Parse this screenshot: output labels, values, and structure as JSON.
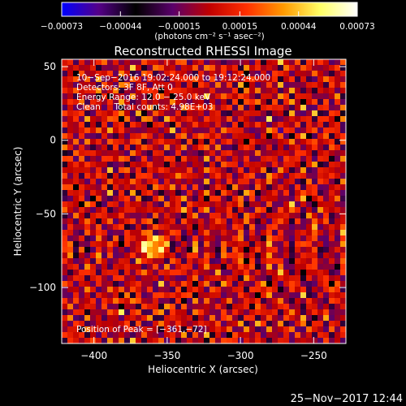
{
  "chart_data": {
    "type": "heatmap",
    "title": "Reconstructed RHESSI Image",
    "xlabel": "Heliocentric X (arcsec)",
    "ylabel": "Heliocentric Y (arcsec)",
    "xlim": [
      -422,
      -228
    ],
    "ylim": [
      -138,
      55
    ],
    "x_ticks": [
      -400,
      -350,
      -300,
      -250
    ],
    "x_tick_labels": [
      "−400",
      "−350",
      "−300",
      "−250"
    ],
    "y_ticks": [
      50,
      0,
      -50,
      -100
    ],
    "y_tick_labels": [
      "50",
      "0",
      "−50",
      "−100"
    ],
    "colorbar": {
      "range": [
        -0.00073,
        0.00073
      ],
      "ticks": [
        -0.00073,
        -0.00044,
        -0.00015,
        0.00015,
        0.00044,
        0.00073
      ],
      "tick_labels": [
        "−0.00073",
        "−0.00044",
        "−0.00015",
        "0.00015",
        "0.00044",
        "0.00073"
      ],
      "units": "(photons cm⁻² s⁻¹ asec⁻²)",
      "stops": [
        "#0000ff",
        "#550088",
        "#000000",
        "#5a006a",
        "#c00000",
        "#ff3000",
        "#ff9a00",
        "#ffff66",
        "#ffffff"
      ]
    },
    "info_lines": [
      "10−Sep−2016 19:02:24.000 to 19:12:24.000",
      "Detectors: 3F 8F, Att 0",
      "Energy Range: 12.0 − 25.0 keV",
      "Clean     Total counts: 4.98E+03"
    ],
    "peak_label": "Position of Peak = [−361,−72]",
    "peak": {
      "x": -361,
      "y": -72
    },
    "timestamp": "25−Nov−2017 12:44"
  }
}
